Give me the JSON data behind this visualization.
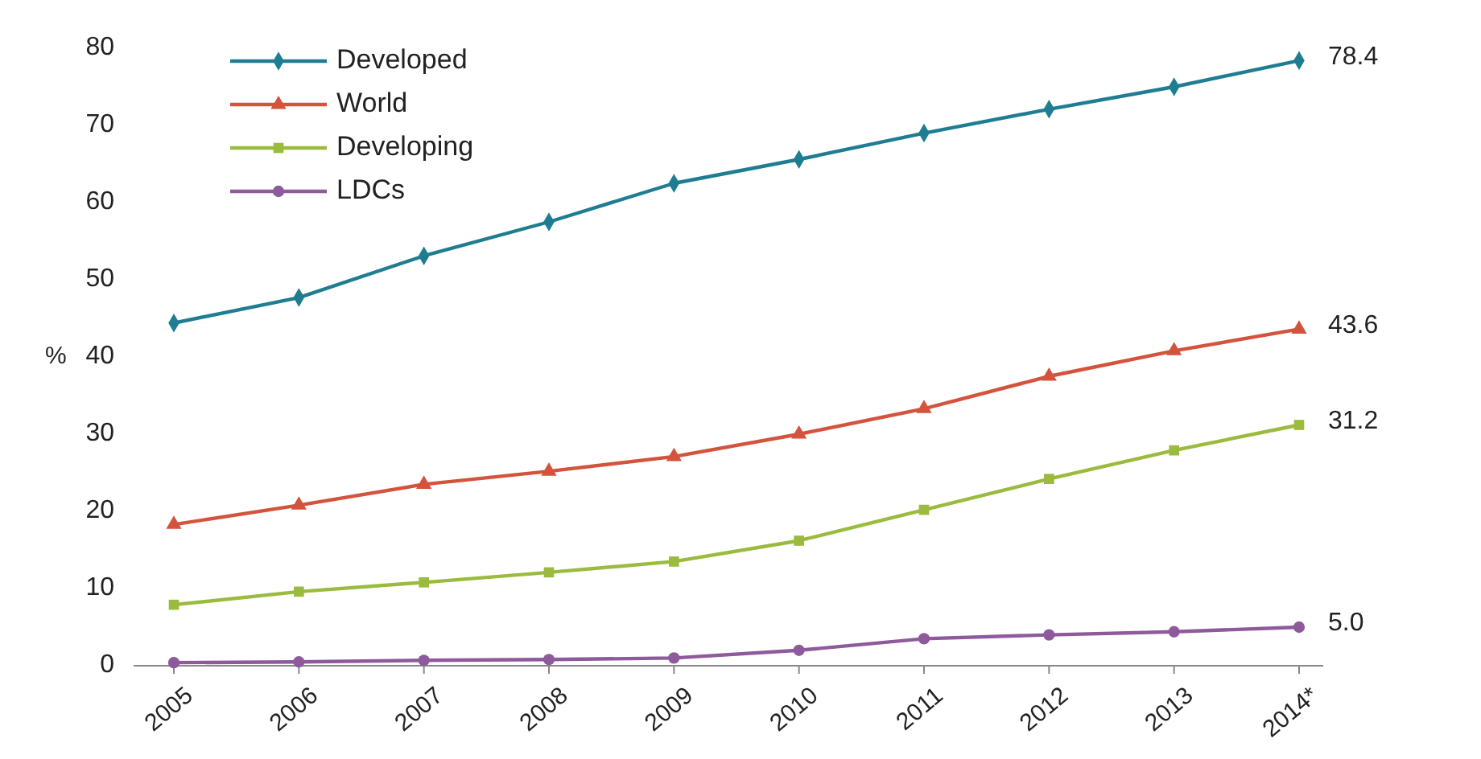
{
  "chart_data": {
    "type": "line",
    "ylabel": "%",
    "categories": [
      "2005",
      "2006",
      "2007",
      "2008",
      "2009",
      "2010",
      "2011",
      "2012",
      "2013",
      "2014*"
    ],
    "ylim": [
      0,
      80
    ],
    "yticks": [
      0,
      10,
      20,
      30,
      40,
      50,
      60,
      70,
      80
    ],
    "grid": false,
    "legend": "top left",
    "series": [
      {
        "name": "Developed",
        "color": "#1f7d92",
        "marker": "diamond",
        "values": [
          44.4,
          47.7,
          53.1,
          57.5,
          62.5,
          65.6,
          69.0,
          72.1,
          75.0,
          78.4
        ],
        "value_labels": [
          null,
          null,
          null,
          null,
          null,
          null,
          null,
          null,
          null,
          "78.4"
        ]
      },
      {
        "name": "World",
        "color": "#d4533c",
        "marker": "triangle",
        "values": [
          18.3,
          20.8,
          23.5,
          25.2,
          27.1,
          30.0,
          33.3,
          37.5,
          40.8,
          43.6
        ],
        "value_labels": [
          null,
          null,
          null,
          null,
          null,
          null,
          null,
          null,
          null,
          "43.6"
        ]
      },
      {
        "name": "Developing",
        "color": "#9bbb3f",
        "marker": "square",
        "values": [
          7.9,
          9.6,
          10.8,
          12.1,
          13.5,
          16.2,
          20.2,
          24.2,
          27.9,
          31.2
        ],
        "value_labels": [
          null,
          null,
          null,
          null,
          null,
          null,
          null,
          null,
          null,
          "31.2"
        ]
      },
      {
        "name": "LDCs",
        "color": "#8e5a9c",
        "marker": "circle",
        "values": [
          0.4,
          0.5,
          0.7,
          0.8,
          1.0,
          2.0,
          3.5,
          4.0,
          4.4,
          5.0
        ],
        "value_labels": [
          null,
          null,
          null,
          null,
          null,
          null,
          null,
          null,
          null,
          "5.0"
        ]
      }
    ]
  }
}
